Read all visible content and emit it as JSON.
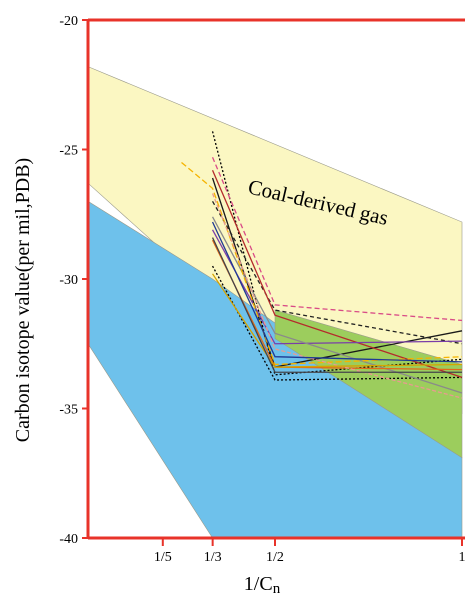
{
  "chart_data": {
    "type": "line",
    "title": "",
    "xlabel": "1/Cn",
    "ylabel": "Carbon isotope value(per mil,PDB)",
    "x_ticks": [
      {
        "value": 0.2,
        "label": "1/5"
      },
      {
        "value": 0.3333,
        "label": "1/3"
      },
      {
        "value": 0.5,
        "label": "1/2"
      },
      {
        "value": 1.0,
        "label": "1"
      }
    ],
    "y_ticks": [
      -20,
      -25,
      -30,
      -35,
      -40
    ],
    "xlim": [
      0.0,
      1.0
    ],
    "ylim": [
      -40,
      -20
    ],
    "grid": false,
    "frame_color": "#e8332a",
    "annotation": "Coal-derived gas",
    "regions": [
      {
        "name": "coal-derived-gas-field",
        "color": "#fbf7c2",
        "points": [
          [
            0,
            -21.8
          ],
          [
            1,
            -27.8
          ],
          [
            1,
            -35.2
          ],
          [
            0.5,
            -32.8
          ],
          [
            0,
            -26.3
          ]
        ]
      },
      {
        "name": "oil-type-gas-field",
        "color": "#6ec1eb",
        "points": [
          [
            0,
            -27
          ],
          [
            0.333,
            -30
          ],
          [
            0.5,
            -31.7
          ],
          [
            1,
            -36.9
          ],
          [
            1,
            -40
          ],
          [
            0.333,
            -40
          ],
          [
            0,
            -32.5
          ]
        ]
      },
      {
        "name": "mixed-gas-band",
        "color": "#9ccd5d",
        "points": [
          [
            0.5,
            -31.2
          ],
          [
            1,
            -33.3
          ],
          [
            1,
            -36.9
          ],
          [
            0.5,
            -32.3
          ]
        ]
      }
    ],
    "series": [
      {
        "color": "#000000",
        "dash": "2,2",
        "values": [
          [
            0.333,
            -24.3
          ],
          [
            0.5,
            -33.7
          ],
          [
            1,
            -33.1
          ]
        ]
      },
      {
        "color": "#000000",
        "dash": "2,2",
        "values": [
          [
            0.333,
            -29.5
          ],
          [
            0.5,
            -33.9
          ],
          [
            1,
            -33.8
          ]
        ]
      },
      {
        "color": "#1a1a1a",
        "dash": "",
        "values": [
          [
            0.333,
            -26.1
          ],
          [
            0.5,
            -33.4
          ],
          [
            1,
            -32.0
          ]
        ]
      },
      {
        "color": "#222222",
        "dash": "4,3",
        "values": [
          [
            0.333,
            -27.0
          ],
          [
            0.5,
            -31.2
          ],
          [
            1,
            -32.5
          ]
        ]
      },
      {
        "color": "#d94b87",
        "dash": "5,3",
        "values": [
          [
            0.333,
            -25.3
          ],
          [
            0.5,
            -31.0
          ],
          [
            1,
            -31.6
          ]
        ]
      },
      {
        "color": "#b42b2b",
        "dash": "",
        "values": [
          [
            0.333,
            -25.8
          ],
          [
            0.5,
            -31.4
          ],
          [
            1,
            -33.8
          ]
        ]
      },
      {
        "color": "#7a3ea8",
        "dash": "",
        "values": [
          [
            0.333,
            -28.1
          ],
          [
            0.5,
            -32.5
          ],
          [
            1,
            -32.4
          ]
        ]
      },
      {
        "color": "#8a8a8a",
        "dash": "",
        "values": [
          [
            0.333,
            -27.6
          ],
          [
            0.5,
            -32.1
          ],
          [
            1,
            -34.4
          ]
        ]
      },
      {
        "color": "#f5b400",
        "dash": "6,3",
        "values": [
          [
            0.25,
            -25.5
          ],
          [
            0.333,
            -26.5
          ],
          [
            0.5,
            -33.3
          ],
          [
            1,
            -33.0
          ]
        ]
      },
      {
        "color": "#e06a1a",
        "dash": "",
        "values": [
          [
            0.333,
            -28.5
          ],
          [
            0.5,
            -33.4
          ],
          [
            1,
            -33.5
          ]
        ]
      },
      {
        "color": "#e89b8f",
        "dash": "4,2",
        "values": [
          [
            0.333,
            -26.7
          ],
          [
            0.5,
            -32.7
          ],
          [
            1,
            -34.6
          ]
        ]
      },
      {
        "color": "#1f3a93",
        "dash": "",
        "values": [
          [
            0.333,
            -27.8
          ],
          [
            0.5,
            -33.0
          ],
          [
            1,
            -33.2
          ]
        ]
      },
      {
        "color": "#d5a300",
        "dash": "",
        "values": [
          [
            0.333,
            -29.8
          ],
          [
            0.5,
            -33.4
          ],
          [
            1,
            -33.3
          ]
        ]
      },
      {
        "color": "#44444a",
        "dash": "",
        "values": [
          [
            0.333,
            -28.4
          ],
          [
            0.5,
            -33.6
          ],
          [
            1,
            -33.6
          ]
        ]
      }
    ]
  }
}
